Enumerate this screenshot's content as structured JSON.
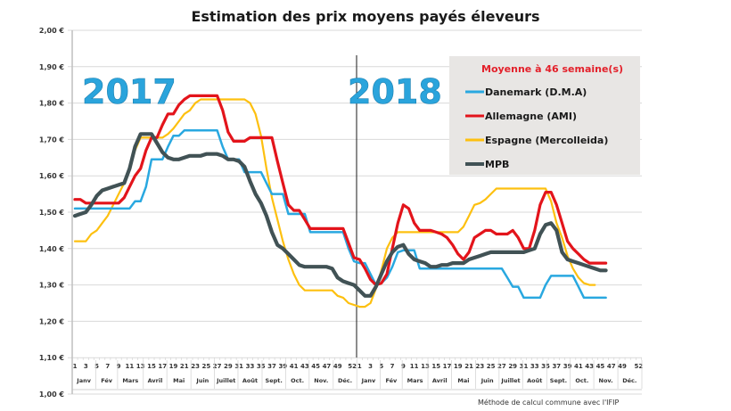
{
  "chart_data": {
    "type": "line",
    "title": "Estimation des prix moyens payés éleveurs",
    "xlabel": "",
    "ylabel": "",
    "ylim": [
      1.0,
      2.0
    ],
    "yticks": [
      "1,00 €",
      "1,10 €",
      "1,20 €",
      "1,30 €",
      "1,40 €",
      "1,50 €",
      "1,60 €",
      "1,70 €",
      "1,80 €",
      "1,90 €",
      "2,00 €"
    ],
    "grid": true,
    "legend_position": "top-right",
    "legend_title": "Moyenne à  46 semaine(s)",
    "year_labels": [
      "2017",
      "2018"
    ],
    "week_ticks_2017": [
      "1",
      "3",
      "5",
      "7",
      "9",
      "11",
      "13",
      "15",
      "17",
      "19",
      "21",
      "23",
      "25",
      "27",
      "29",
      "31",
      "33",
      "35",
      "37",
      "39",
      "41",
      "43",
      "45",
      "47",
      "49",
      "52"
    ],
    "week_ticks_2018": [
      "1",
      "3",
      "5",
      "7",
      "9",
      "11",
      "13",
      "15",
      "17",
      "19",
      "21",
      "23",
      "25",
      "27",
      "29",
      "31",
      "33",
      "35",
      "37",
      "39",
      "41",
      "43",
      "45",
      "47",
      "49",
      "52"
    ],
    "months": [
      "Janv",
      "Fév",
      "Mars",
      "Avril",
      "Mai",
      "Juin",
      "Juillet",
      "Août",
      "Sept.",
      "Oct.",
      "Nov.",
      "Déc."
    ],
    "footnote": "Méthode de calcul commune avec l'IFIP",
    "series": [
      {
        "name": "Danemark (D.M.A)",
        "color": "#29a8e0",
        "values_2017": [
          1.51,
          1.51,
          1.51,
          1.51,
          1.51,
          1.51,
          1.51,
          1.51,
          1.51,
          1.51,
          1.51,
          1.53,
          1.53,
          1.57,
          1.645,
          1.645,
          1.645,
          1.68,
          1.71,
          1.71,
          1.725,
          1.725,
          1.725,
          1.725,
          1.725,
          1.725,
          1.725,
          1.68,
          1.645,
          1.645,
          1.645,
          1.61,
          1.61,
          1.61,
          1.61,
          1.58,
          1.55,
          1.55,
          1.55,
          1.495,
          1.495,
          1.495,
          1.495,
          1.445,
          1.445,
          1.445,
          1.445,
          1.445,
          1.445,
          1.445,
          1.4,
          1.365
        ],
        "values_2018": [
          1.36,
          1.36,
          1.33,
          1.3,
          1.305,
          1.32,
          1.35,
          1.39,
          1.395,
          1.395,
          1.395,
          1.345,
          1.345,
          1.345,
          1.345,
          1.345,
          1.345,
          1.345,
          1.345,
          1.345,
          1.345,
          1.345,
          1.345,
          1.345,
          1.345,
          1.345,
          1.345,
          1.32,
          1.295,
          1.295,
          1.265,
          1.265,
          1.265,
          1.265,
          1.3,
          1.325,
          1.325,
          1.325,
          1.325,
          1.325,
          1.295,
          1.265,
          1.265,
          1.265,
          1.265,
          1.265
        ]
      },
      {
        "name": "Allemagne (AMI)",
        "color": "#e3141b",
        "values_2017": [
          1.535,
          1.535,
          1.525,
          1.525,
          1.525,
          1.525,
          1.525,
          1.525,
          1.525,
          1.54,
          1.57,
          1.6,
          1.62,
          1.67,
          1.705,
          1.705,
          1.74,
          1.77,
          1.77,
          1.795,
          1.81,
          1.82,
          1.82,
          1.82,
          1.82,
          1.82,
          1.82,
          1.78,
          1.72,
          1.695,
          1.695,
          1.695,
          1.705,
          1.705,
          1.705,
          1.705,
          1.705,
          1.64,
          1.58,
          1.52,
          1.505,
          1.505,
          1.48,
          1.455,
          1.455,
          1.455,
          1.455,
          1.455,
          1.455,
          1.455,
          1.415,
          1.375
        ],
        "values_2018": [
          1.37,
          1.345,
          1.315,
          1.3,
          1.305,
          1.33,
          1.4,
          1.47,
          1.52,
          1.51,
          1.47,
          1.45,
          1.45,
          1.45,
          1.445,
          1.44,
          1.43,
          1.41,
          1.385,
          1.37,
          1.39,
          1.43,
          1.44,
          1.45,
          1.45,
          1.44,
          1.44,
          1.44,
          1.45,
          1.43,
          1.4,
          1.4,
          1.45,
          1.52,
          1.555,
          1.555,
          1.52,
          1.47,
          1.42,
          1.4,
          1.385,
          1.37,
          1.36,
          1.36,
          1.36,
          1.36
        ]
      },
      {
        "name": "Espagne (Mercolleida)",
        "color": "#fdc010",
        "values_2017": [
          1.42,
          1.42,
          1.42,
          1.44,
          1.45,
          1.47,
          1.49,
          1.52,
          1.55,
          1.58,
          1.62,
          1.67,
          1.705,
          1.705,
          1.705,
          1.705,
          1.705,
          1.715,
          1.73,
          1.75,
          1.77,
          1.78,
          1.8,
          1.81,
          1.81,
          1.81,
          1.81,
          1.81,
          1.81,
          1.81,
          1.81,
          1.81,
          1.8,
          1.77,
          1.71,
          1.62,
          1.54,
          1.48,
          1.42,
          1.37,
          1.33,
          1.3,
          1.285,
          1.285,
          1.285,
          1.285,
          1.285,
          1.285,
          1.27,
          1.265,
          1.25,
          1.245
        ],
        "values_2018": [
          1.24,
          1.24,
          1.25,
          1.29,
          1.34,
          1.4,
          1.43,
          1.445,
          1.445,
          1.445,
          1.445,
          1.445,
          1.445,
          1.445,
          1.445,
          1.445,
          1.445,
          1.445,
          1.445,
          1.46,
          1.49,
          1.52,
          1.525,
          1.535,
          1.55,
          1.565,
          1.565,
          1.565,
          1.565,
          1.565,
          1.565,
          1.565,
          1.565,
          1.565,
          1.565,
          1.53,
          1.47,
          1.43,
          1.38,
          1.345,
          1.32,
          1.305,
          1.3,
          1.3
        ]
      },
      {
        "name": "MPB",
        "color": "#415255",
        "values_2017": [
          1.49,
          1.495,
          1.5,
          1.52,
          1.545,
          1.56,
          1.565,
          1.57,
          1.575,
          1.58,
          1.62,
          1.68,
          1.715,
          1.715,
          1.715,
          1.69,
          1.665,
          1.65,
          1.645,
          1.645,
          1.65,
          1.655,
          1.655,
          1.655,
          1.66,
          1.66,
          1.66,
          1.655,
          1.645,
          1.645,
          1.64,
          1.625,
          1.585,
          1.55,
          1.525,
          1.49,
          1.445,
          1.41,
          1.4,
          1.385,
          1.37,
          1.355,
          1.35,
          1.35,
          1.35,
          1.35,
          1.35,
          1.345,
          1.32,
          1.31,
          1.305,
          1.3
        ],
        "values_2018": [
          1.285,
          1.27,
          1.27,
          1.295,
          1.33,
          1.365,
          1.39,
          1.405,
          1.41,
          1.385,
          1.37,
          1.365,
          1.36,
          1.35,
          1.35,
          1.355,
          1.355,
          1.36,
          1.36,
          1.36,
          1.37,
          1.375,
          1.38,
          1.385,
          1.39,
          1.39,
          1.39,
          1.39,
          1.39,
          1.39,
          1.39,
          1.395,
          1.4,
          1.44,
          1.465,
          1.47,
          1.45,
          1.39,
          1.37,
          1.365,
          1.36,
          1.355,
          1.35,
          1.345,
          1.34,
          1.34
        ]
      }
    ]
  }
}
